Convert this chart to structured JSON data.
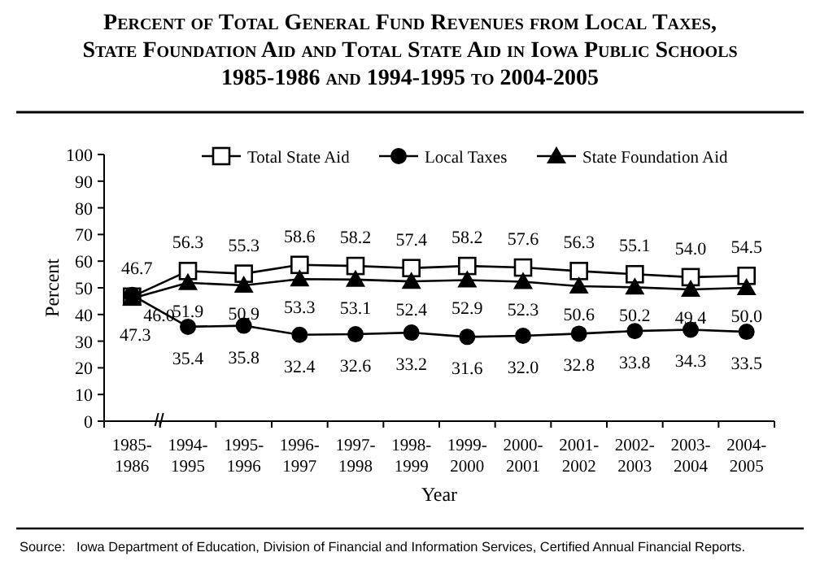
{
  "chart_data": {
    "type": "line",
    "title": "Percent of Total General Fund Revenues from Local Taxes,\nState Foundation Aid and Total State Aid in Iowa Public Schools\n1985-1986 and 1994-1995 to 2004-2005",
    "xlabel": "Year",
    "ylabel": "Percent",
    "categories": [
      "1985-1986",
      "1994-1995",
      "1995-1996",
      "1996-1997",
      "1997-1998",
      "1998-1999",
      "1999-2000",
      "2000-2001",
      "2001-2002",
      "2002-2003",
      "2003-2004",
      "2004-2005"
    ],
    "series": [
      {
        "name": "Total State Aid",
        "color": "#000000",
        "marker": "square",
        "values": [
          46.7,
          56.3,
          55.3,
          58.6,
          58.2,
          57.4,
          58.2,
          57.6,
          56.3,
          55.1,
          54.0,
          54.5
        ],
        "value_labels": [
          "46.7",
          "56.3",
          "55.3",
          "58.6",
          "58.2",
          "57.4",
          "58.2",
          "57.6",
          "56.3",
          "55.1",
          "54.0",
          "54.5"
        ]
      },
      {
        "name": "Local Taxes",
        "color": "#000000",
        "marker": "circle",
        "values": [
          47.3,
          35.4,
          35.8,
          32.4,
          32.6,
          33.2,
          31.6,
          32.0,
          32.8,
          33.8,
          34.3,
          33.5
        ],
        "value_labels": [
          "47.3",
          "35.4",
          "35.8",
          "32.4",
          "32.6",
          "33.2",
          "31.6",
          "32.0",
          "32.8",
          "33.8",
          "34.3",
          "33.5"
        ]
      },
      {
        "name": "State Foundation Aid",
        "color": "#000000",
        "marker": "triangle",
        "values": [
          46.0,
          51.9,
          50.9,
          53.3,
          53.1,
          52.4,
          52.9,
          52.3,
          50.6,
          50.2,
          49.4,
          50.0
        ],
        "value_labels": [
          "46.0",
          "51.9",
          "50.9",
          "53.3",
          "53.1",
          "52.4",
          "52.9",
          "52.3",
          "50.6",
          "50.2",
          "49.4",
          "50.0"
        ]
      }
    ],
    "ylim": [
      0,
      100
    ],
    "yticks": [
      0,
      10,
      20,
      30,
      40,
      50,
      60,
      70,
      80,
      90,
      100
    ],
    "grid": false,
    "legend": "top",
    "line_style": "solid",
    "annotations": [
      "Source:   Iowa Department of Education, Division of Financial and Information Services, Certified Annual Financial Reports."
    ]
  }
}
